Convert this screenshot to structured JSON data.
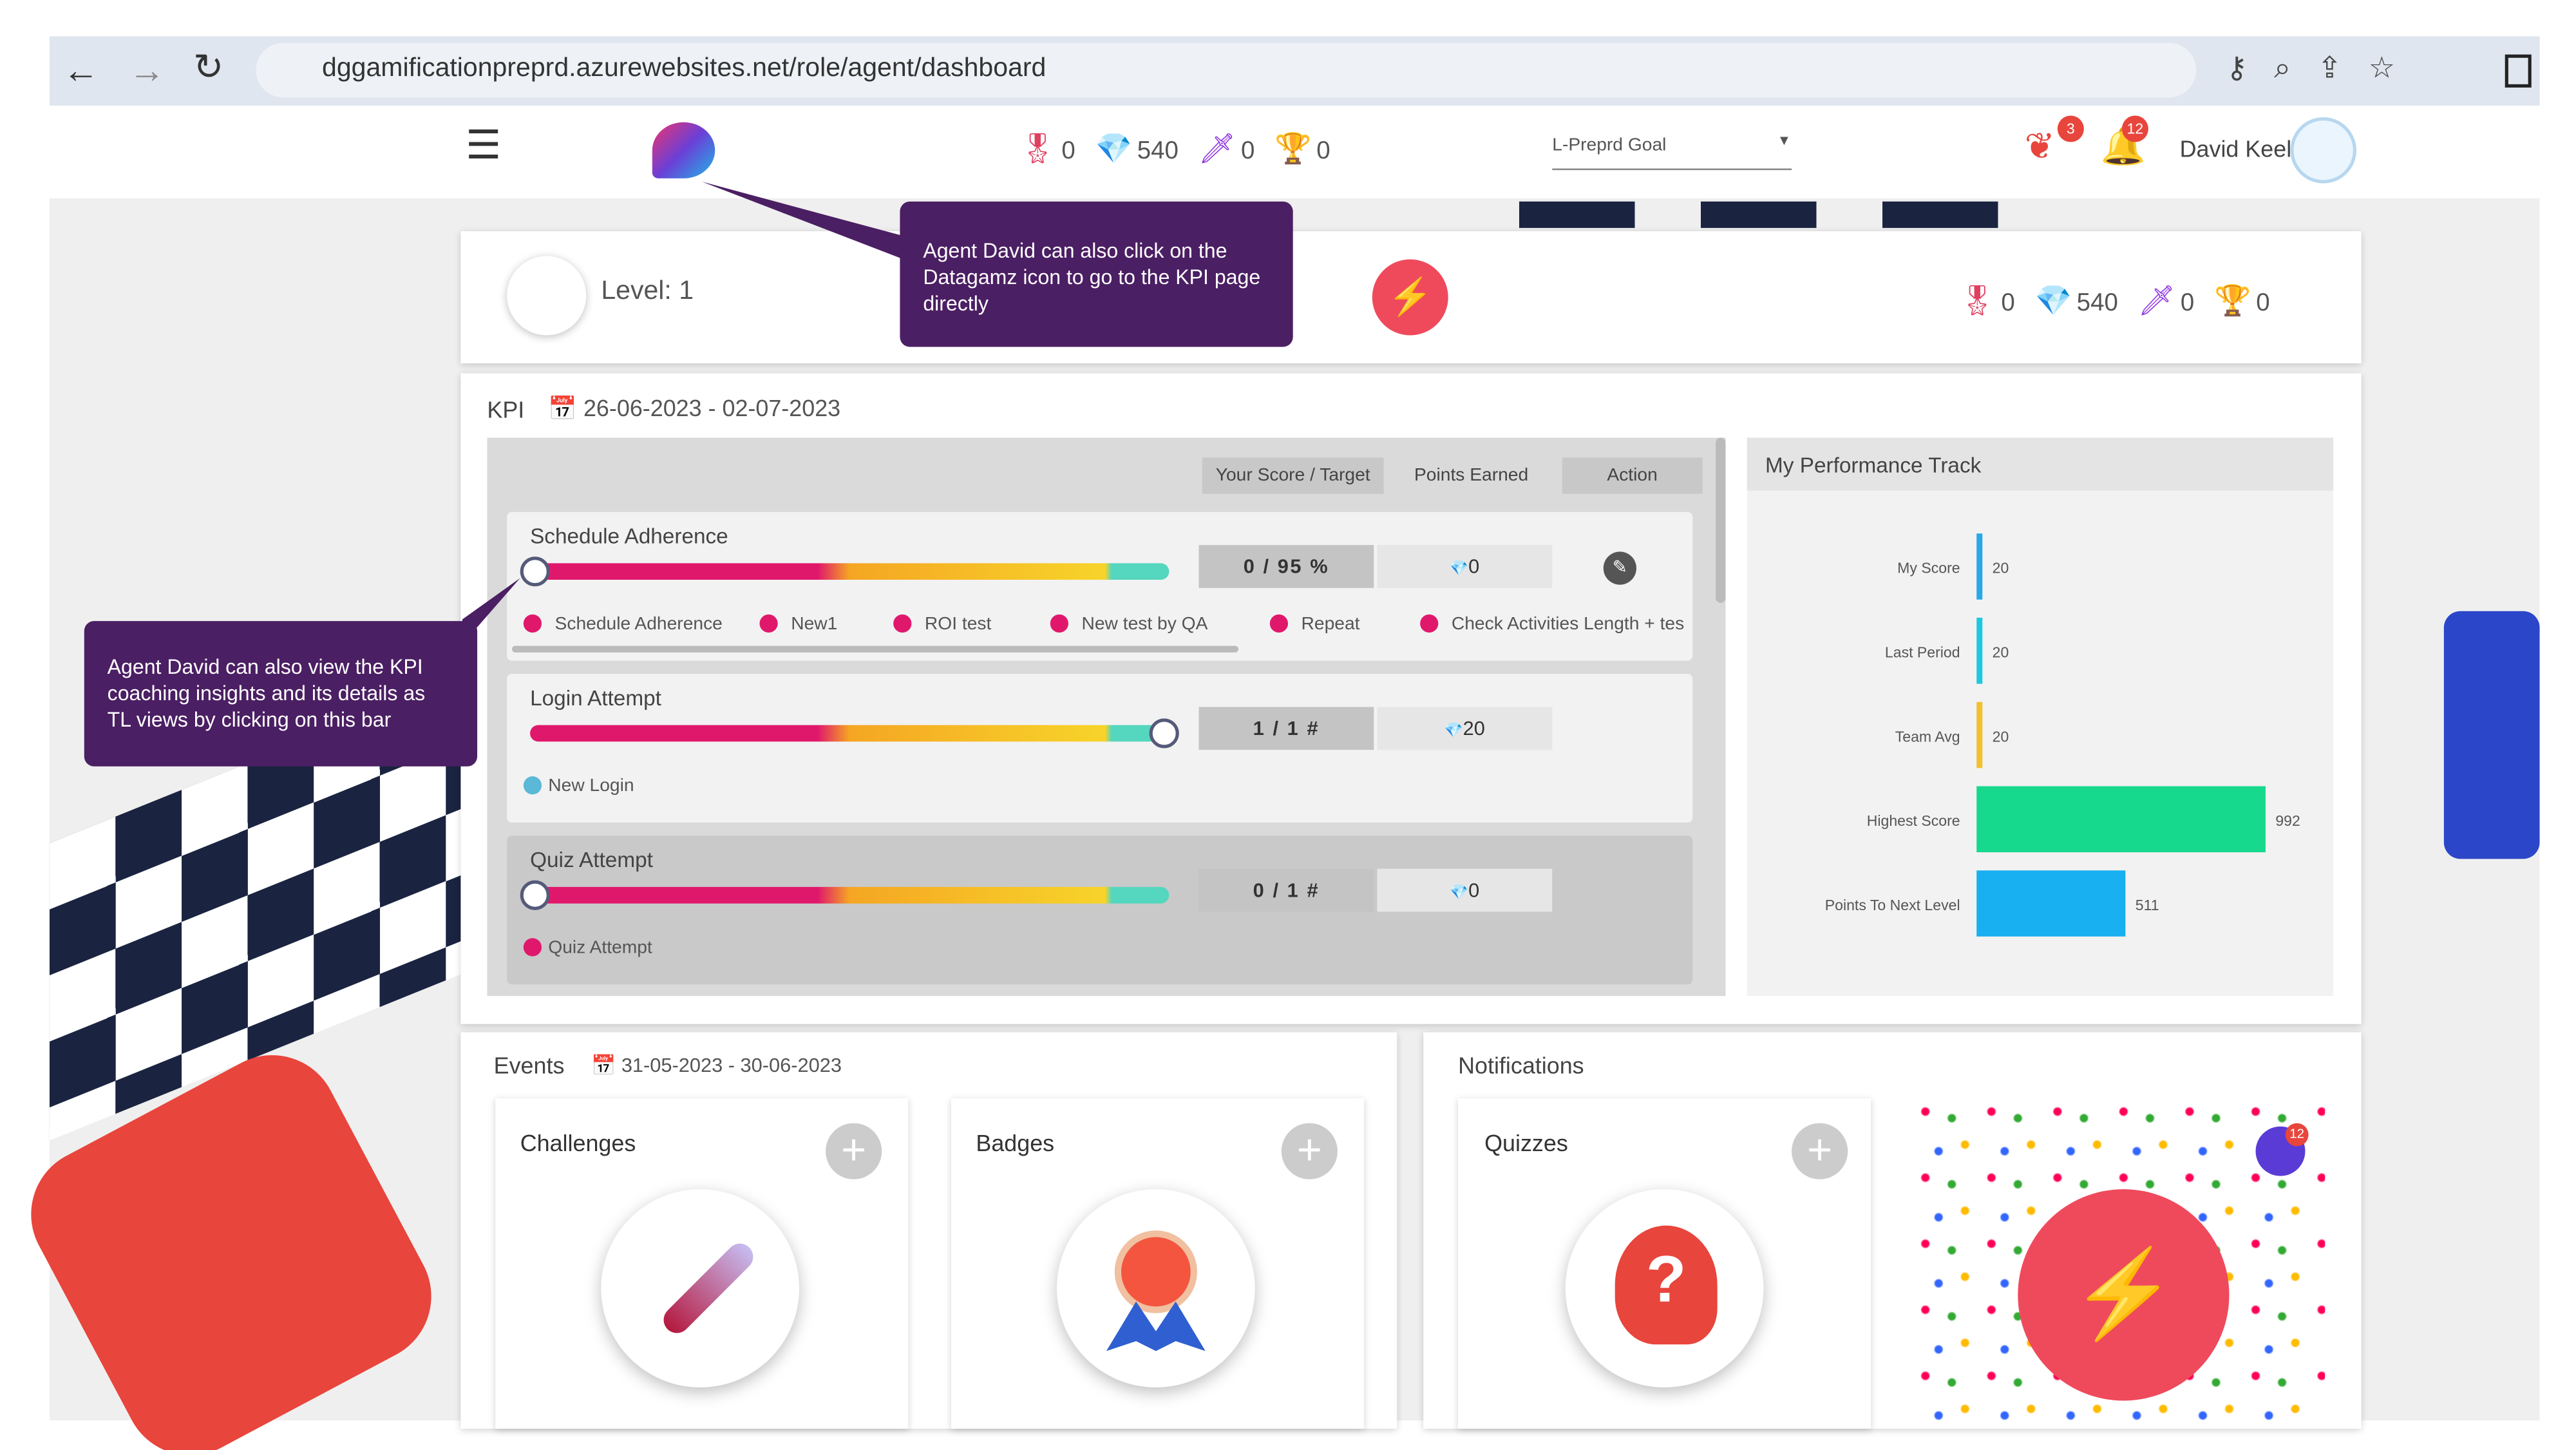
{
  "browser": {
    "url": "dggamificationpreprd.azurewebsites.net/role/agent/dashboard"
  },
  "header": {
    "stats": [
      0,
      540,
      0,
      0
    ],
    "goal_select": "L-Preprd Goal",
    "notification_counts": [
      3,
      12
    ],
    "user": "David Keel"
  },
  "callouts": [
    "Agent David can also click on the Datagamz icon to go to the KPI page directly",
    "Agent David can also view the KPI coaching insights and its details as TL views by clicking on this bar"
  ],
  "level": {
    "label": "Level: 1",
    "stats": [
      0,
      540,
      0,
      0
    ]
  },
  "kpi": {
    "title": "KPI",
    "date_range": "26-06-2023 - 02-07-2023",
    "columns": [
      "Your Score / Target",
      "Points Earned",
      "Action"
    ],
    "rows": [
      {
        "name": "Schedule Adherence",
        "score": "0 / 95 %",
        "points": 0,
        "legend": [
          "Schedule Adherence",
          "New1",
          "ROI test",
          "New test by QA",
          "Repeat",
          "Check Activities Length + tes"
        ]
      },
      {
        "name": "Login Attempt",
        "score": "1 / 1 #",
        "points": 20,
        "legend": [
          "New Login"
        ]
      },
      {
        "name": "Quiz Attempt",
        "score": "0 / 1 #",
        "points": 0,
        "legend": [
          "Quiz Attempt"
        ]
      }
    ]
  },
  "performance": {
    "title": "My Performance Track",
    "categories": [
      "My Score",
      "Last Period",
      "Team Avg",
      "Highest Score",
      "Points To Next Level"
    ],
    "values": [
      20,
      20,
      20,
      992,
      511
    ],
    "colors": [
      "#29a8e8",
      "#1ec8e0",
      "#f2c12e",
      "#17d98e",
      "#18b0f0"
    ]
  },
  "events": {
    "title": "Events",
    "date_range": "31-05-2023 - 30-06-2023",
    "cards": [
      "Challenges",
      "Badges"
    ]
  },
  "notifications": {
    "title": "Notifications",
    "cards": [
      "Quizzes"
    ],
    "badge": 12
  }
}
